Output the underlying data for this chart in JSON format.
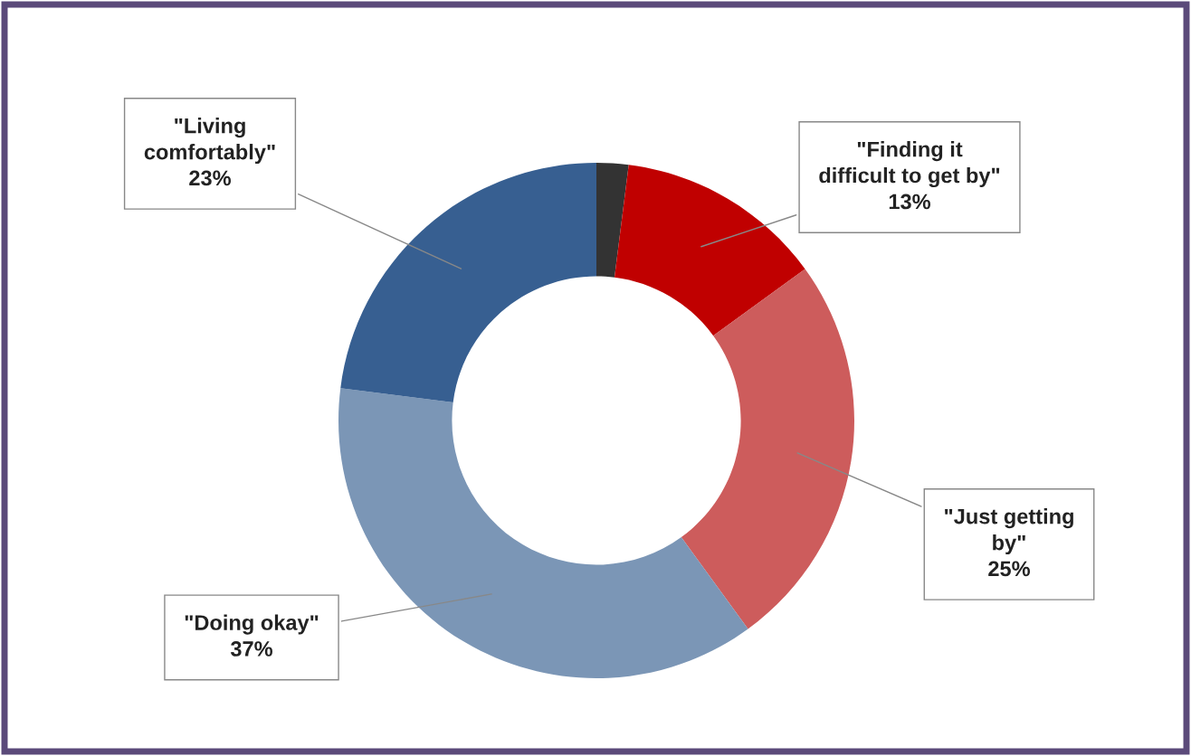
{
  "chart_data": {
    "type": "donut",
    "categories": [
      null,
      "\"Finding it\ndifficult to get by\"",
      "\"Just getting\nby\"",
      "\"Doing okay\"",
      "\"Living\ncomfortably\""
    ],
    "values": [
      2,
      13,
      25,
      37,
      23
    ],
    "colors": [
      "#333333",
      "#c00000",
      "#cd5c5c",
      "#7b96b6",
      "#375f91"
    ],
    "value_labels": [
      null,
      "13%",
      "25%",
      "37%",
      "23%"
    ],
    "legend": false
  }
}
